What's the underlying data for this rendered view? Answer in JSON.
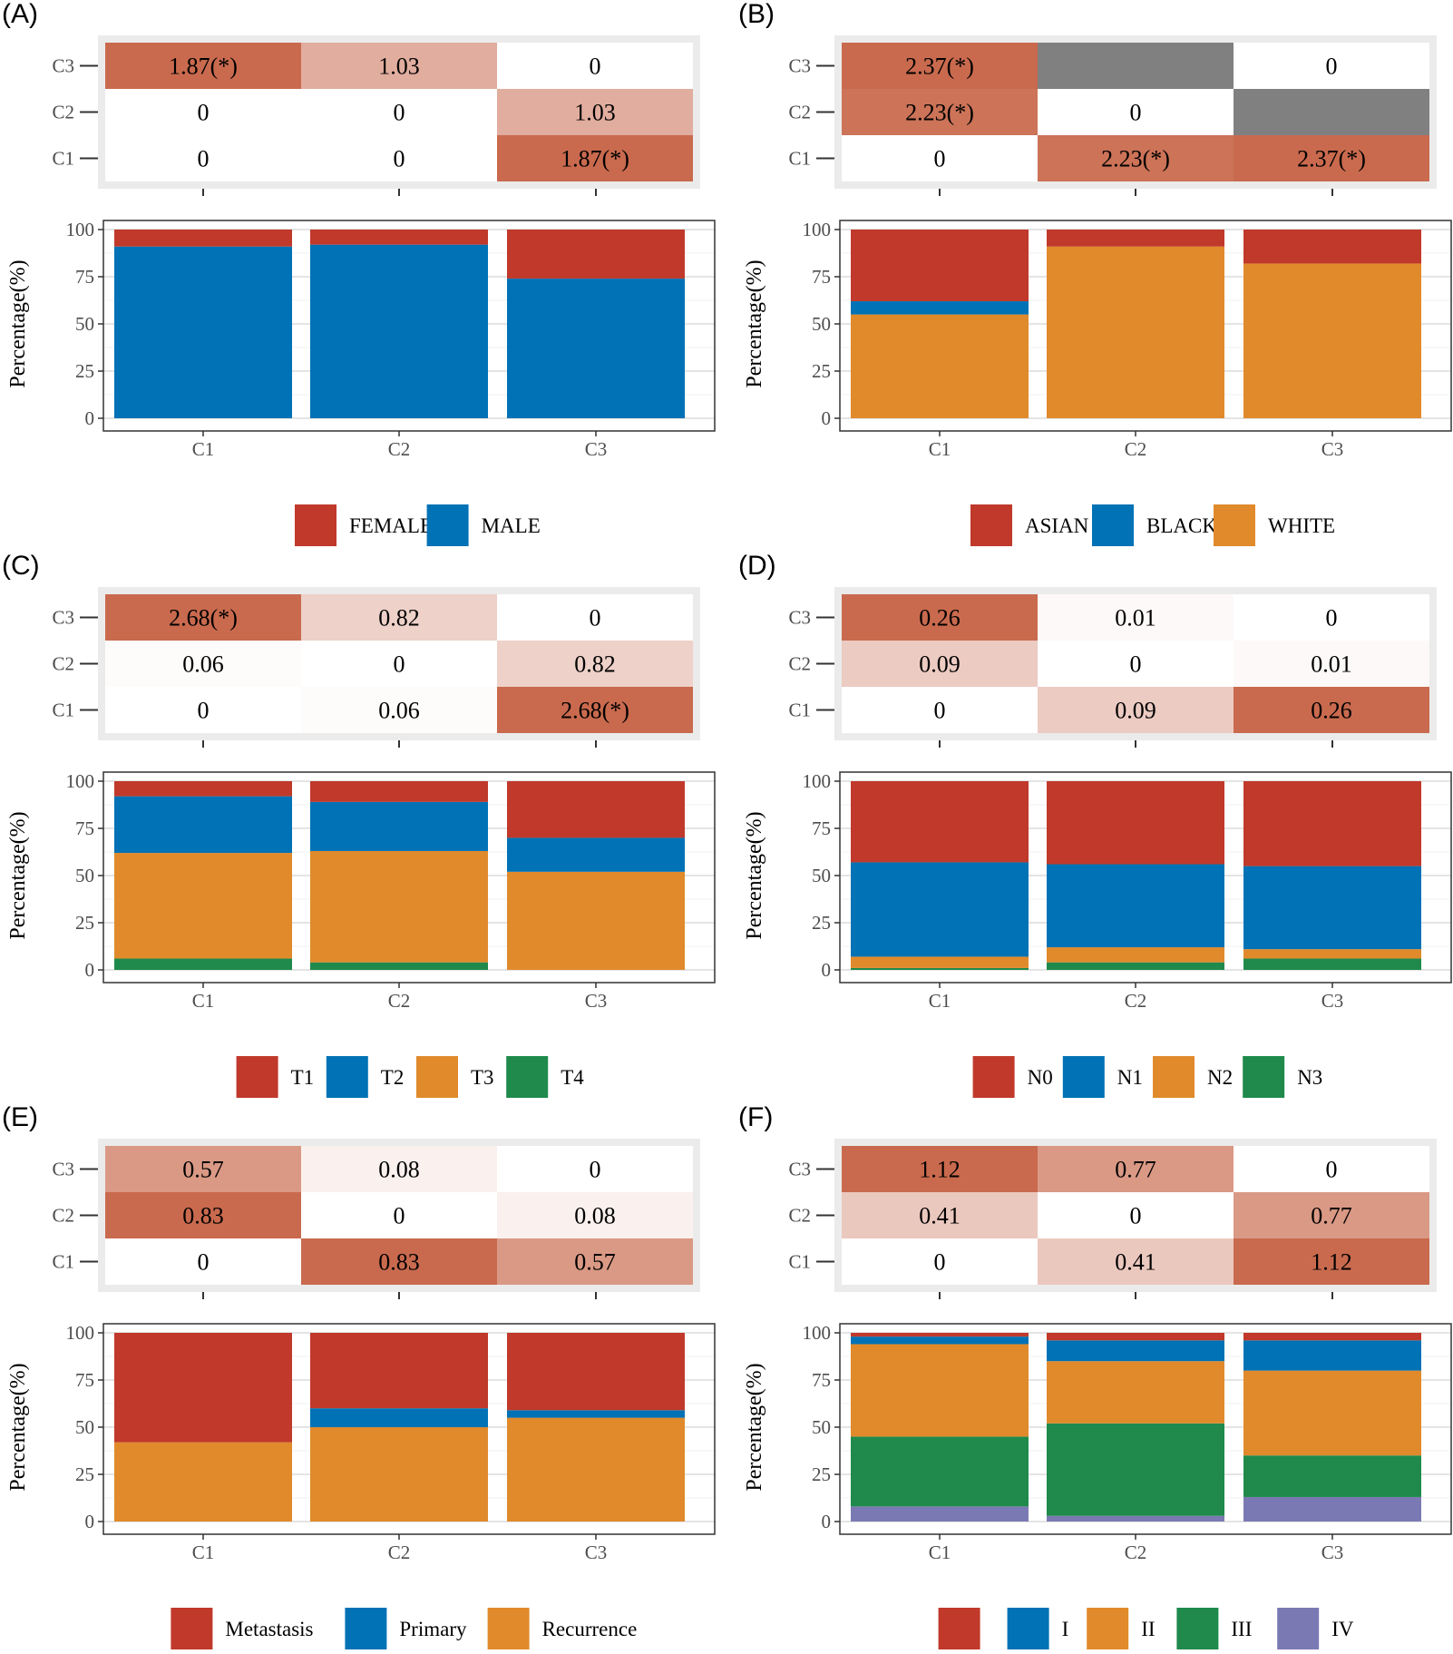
{
  "colors": {
    "red": "#c0392b",
    "blue": "#0072b5",
    "orange": "#e08a2c",
    "green": "#1f8a4c",
    "purple": "#7b79b3",
    "na_gray": "#808080",
    "heat_high": "#c96a4e",
    "heat_low": "#ffffff"
  },
  "chart_data": [
    {
      "panel": "(A)",
      "type": "bar",
      "stacked": true,
      "categories": [
        "C1",
        "C2",
        "C3"
      ],
      "ylabel": "Percentage(%)",
      "ylim": [
        0,
        100
      ],
      "yticks": [
        "0",
        "25",
        "50",
        "75",
        "100"
      ],
      "series": [
        {
          "name": "MALE",
          "color": "#0072b5",
          "values": [
            91,
            92,
            74
          ]
        },
        {
          "name": "FEMALE",
          "color": "#c0392b",
          "values": [
            9,
            8,
            26
          ]
        }
      ],
      "legend": [
        {
          "label": "FEMALE",
          "color": "#c0392b"
        },
        {
          "label": "MALE",
          "color": "#0072b5"
        }
      ],
      "heatmap": {
        "rows": [
          "C3",
          "C2",
          "C1"
        ],
        "cells": [
          [
            {
              "text": "1.87(*)",
              "value": 1.87
            },
            {
              "text": "1.03",
              "value": 1.03
            },
            {
              "text": "0",
              "value": 0
            }
          ],
          [
            {
              "text": "0",
              "value": 0
            },
            {
              "text": "0",
              "value": 0
            },
            {
              "text": "1.03",
              "value": 1.03
            }
          ],
          [
            {
              "text": "0",
              "value": 0
            },
            {
              "text": "0",
              "value": 0
            },
            {
              "text": "1.87(*)",
              "value": 1.87
            }
          ]
        ]
      }
    },
    {
      "panel": "(B)",
      "type": "bar",
      "stacked": true,
      "categories": [
        "C1",
        "C2",
        "C3"
      ],
      "ylabel": "Percentage(%)",
      "ylim": [
        0,
        100
      ],
      "yticks": [
        "0",
        "25",
        "50",
        "75",
        "100"
      ],
      "series": [
        {
          "name": "WHITE",
          "color": "#e08a2c",
          "values": [
            55,
            91,
            82
          ]
        },
        {
          "name": "BLACK",
          "color": "#0072b5",
          "values": [
            7,
            0,
            0
          ]
        },
        {
          "name": "ASIAN",
          "color": "#c0392b",
          "values": [
            38,
            9,
            18
          ]
        }
      ],
      "legend": [
        {
          "label": "ASIAN",
          "color": "#c0392b"
        },
        {
          "label": "BLACK",
          "color": "#0072b5"
        },
        {
          "label": "WHITE",
          "color": "#e08a2c"
        }
      ],
      "heatmap": {
        "rows": [
          "C3",
          "C2",
          "C1"
        ],
        "cells": [
          [
            {
              "text": "2.37(*)",
              "value": 2.37
            },
            {
              "text": "",
              "value": null
            },
            {
              "text": "0",
              "value": 0
            }
          ],
          [
            {
              "text": "2.23(*)",
              "value": 2.23
            },
            {
              "text": "0",
              "value": 0
            },
            {
              "text": "",
              "value": null
            }
          ],
          [
            {
              "text": "0",
              "value": 0
            },
            {
              "text": "2.23(*)",
              "value": 2.23
            },
            {
              "text": "2.37(*)",
              "value": 2.37
            }
          ]
        ]
      }
    },
    {
      "panel": "(C)",
      "type": "bar",
      "stacked": true,
      "categories": [
        "C1",
        "C2",
        "C3"
      ],
      "ylabel": "Percentage(%)",
      "ylim": [
        0,
        100
      ],
      "yticks": [
        "0",
        "25",
        "50",
        "75",
        "100"
      ],
      "series": [
        {
          "name": "T4",
          "color": "#1f8a4c",
          "values": [
            6,
            4,
            0
          ]
        },
        {
          "name": "T3",
          "color": "#e08a2c",
          "values": [
            56,
            59,
            52
          ]
        },
        {
          "name": "T2",
          "color": "#0072b5",
          "values": [
            30,
            26,
            18
          ]
        },
        {
          "name": "T1",
          "color": "#c0392b",
          "values": [
            8,
            11,
            30
          ]
        }
      ],
      "legend": [
        {
          "label": "T1",
          "color": "#c0392b"
        },
        {
          "label": "T2",
          "color": "#0072b5"
        },
        {
          "label": "T3",
          "color": "#e08a2c"
        },
        {
          "label": "T4",
          "color": "#1f8a4c"
        }
      ],
      "heatmap": {
        "rows": [
          "C3",
          "C2",
          "C1"
        ],
        "cells": [
          [
            {
              "text": "2.68(*)",
              "value": 2.68
            },
            {
              "text": "0.82",
              "value": 0.82
            },
            {
              "text": "0",
              "value": 0
            }
          ],
          [
            {
              "text": "0.06",
              "value": 0.06
            },
            {
              "text": "0",
              "value": 0
            },
            {
              "text": "0.82",
              "value": 0.82
            }
          ],
          [
            {
              "text": "0",
              "value": 0
            },
            {
              "text": "0.06",
              "value": 0.06
            },
            {
              "text": "2.68(*)",
              "value": 2.68
            }
          ]
        ]
      }
    },
    {
      "panel": "(D)",
      "type": "bar",
      "stacked": true,
      "categories": [
        "C1",
        "C2",
        "C3"
      ],
      "ylabel": "Percentage(%)",
      "ylim": [
        0,
        100
      ],
      "yticks": [
        "0",
        "25",
        "50",
        "75",
        "100"
      ],
      "series": [
        {
          "name": "N3",
          "color": "#1f8a4c",
          "values": [
            1,
            4,
            6
          ]
        },
        {
          "name": "N2",
          "color": "#e08a2c",
          "values": [
            6,
            8,
            5
          ]
        },
        {
          "name": "N1",
          "color": "#0072b5",
          "values": [
            50,
            44,
            44
          ]
        },
        {
          "name": "N0",
          "color": "#c0392b",
          "values": [
            43,
            44,
            45
          ]
        }
      ],
      "legend": [
        {
          "label": "N0",
          "color": "#c0392b"
        },
        {
          "label": "N1",
          "color": "#0072b5"
        },
        {
          "label": "N2",
          "color": "#e08a2c"
        },
        {
          "label": "N3",
          "color": "#1f8a4c"
        }
      ],
      "heatmap": {
        "rows": [
          "C3",
          "C2",
          "C1"
        ],
        "cells": [
          [
            {
              "text": "0.26",
              "value": 0.26
            },
            {
              "text": "0.01",
              "value": 0.01
            },
            {
              "text": "0",
              "value": 0
            }
          ],
          [
            {
              "text": "0.09",
              "value": 0.09
            },
            {
              "text": "0",
              "value": 0
            },
            {
              "text": "0.01",
              "value": 0.01
            }
          ],
          [
            {
              "text": "0",
              "value": 0
            },
            {
              "text": "0.09",
              "value": 0.09
            },
            {
              "text": "0.26",
              "value": 0.26
            }
          ]
        ]
      }
    },
    {
      "panel": "(E)",
      "type": "bar",
      "stacked": true,
      "categories": [
        "C1",
        "C2",
        "C3"
      ],
      "ylabel": "Percentage(%)",
      "ylim": [
        0,
        100
      ],
      "yticks": [
        "0",
        "25",
        "50",
        "75",
        "100"
      ],
      "series": [
        {
          "name": "Recurrence",
          "color": "#e08a2c",
          "values": [
            42,
            50,
            55
          ]
        },
        {
          "name": "Primary",
          "color": "#0072b5",
          "values": [
            0,
            10,
            4
          ]
        },
        {
          "name": "Metastasis",
          "color": "#c0392b",
          "values": [
            58,
            40,
            41
          ]
        }
      ],
      "legend": [
        {
          "label": "Metastasis",
          "color": "#c0392b"
        },
        {
          "label": "Primary",
          "color": "#0072b5"
        },
        {
          "label": "Recurrence",
          "color": "#e08a2c"
        }
      ],
      "heatmap": {
        "rows": [
          "C3",
          "C2",
          "C1"
        ],
        "cells": [
          [
            {
              "text": "0.57",
              "value": 0.57
            },
            {
              "text": "0.08",
              "value": 0.08
            },
            {
              "text": "0",
              "value": 0
            }
          ],
          [
            {
              "text": "0.83",
              "value": 0.83
            },
            {
              "text": "0",
              "value": 0
            },
            {
              "text": "0.08",
              "value": 0.08
            }
          ],
          [
            {
              "text": "0",
              "value": 0
            },
            {
              "text": "0.83",
              "value": 0.83
            },
            {
              "text": "0.57",
              "value": 0.57
            }
          ]
        ]
      }
    },
    {
      "panel": "(F)",
      "type": "bar",
      "stacked": true,
      "categories": [
        "C1",
        "C2",
        "C3"
      ],
      "ylabel": "Percentage(%)",
      "ylim": [
        0,
        100
      ],
      "yticks": [
        "0",
        "25",
        "50",
        "75",
        "100"
      ],
      "series": [
        {
          "name": "IV",
          "color": "#7b79b3",
          "values": [
            8,
            3,
            13
          ]
        },
        {
          "name": "III",
          "color": "#1f8a4c",
          "values": [
            37,
            49,
            22
          ]
        },
        {
          "name": "II",
          "color": "#e08a2c",
          "values": [
            49,
            33,
            45
          ]
        },
        {
          "name": "I",
          "color": "#0072b5",
          "values": [
            4,
            11,
            16
          ]
        },
        {
          "name": "",
          "color": "#c0392b",
          "values": [
            2,
            4,
            4
          ]
        }
      ],
      "legend": [
        {
          "label": "",
          "color": "#c0392b"
        },
        {
          "label": "I",
          "color": "#0072b5"
        },
        {
          "label": "II",
          "color": "#e08a2c"
        },
        {
          "label": "III",
          "color": "#1f8a4c"
        },
        {
          "label": "IV",
          "color": "#7b79b3"
        }
      ],
      "heatmap": {
        "rows": [
          "C3",
          "C2",
          "C1"
        ],
        "cells": [
          [
            {
              "text": "1.12",
              "value": 1.12
            },
            {
              "text": "0.77",
              "value": 0.77
            },
            {
              "text": "0",
              "value": 0
            }
          ],
          [
            {
              "text": "0.41",
              "value": 0.41
            },
            {
              "text": "0",
              "value": 0
            },
            {
              "text": "0.77",
              "value": 0.77
            }
          ],
          [
            {
              "text": "0",
              "value": 0
            },
            {
              "text": "0.41",
              "value": 0.41
            },
            {
              "text": "1.12",
              "value": 1.12
            }
          ]
        ]
      }
    }
  ]
}
